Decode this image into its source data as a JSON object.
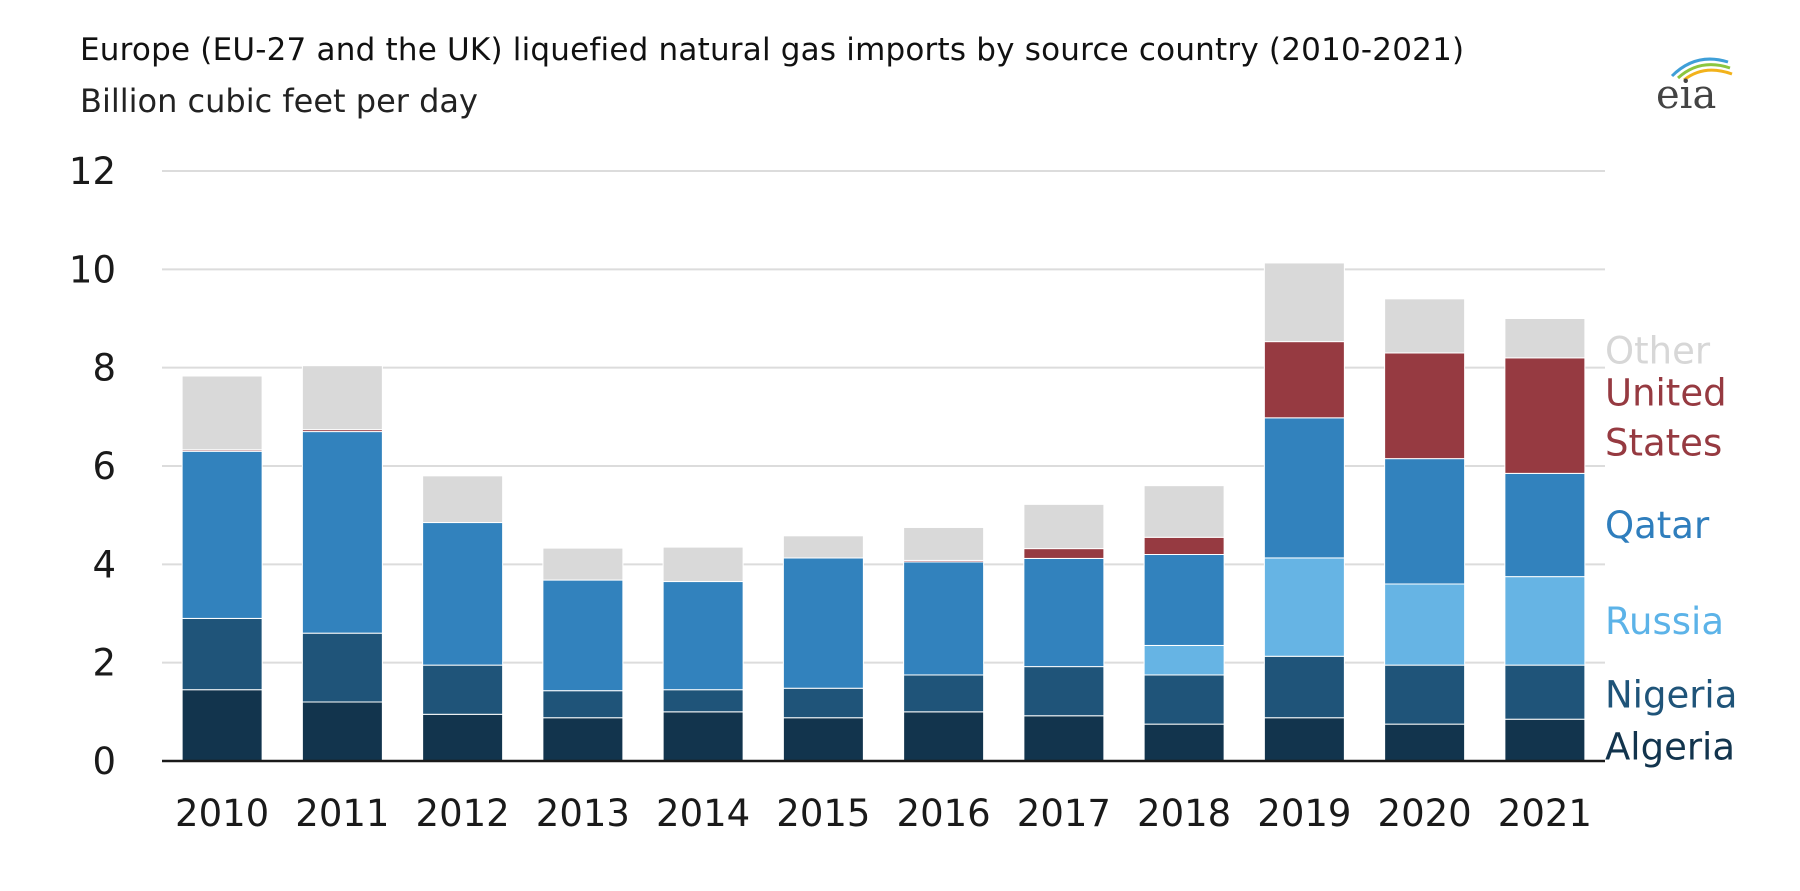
{
  "chart_data": {
    "type": "bar",
    "stacked": true,
    "title": "Europe (EU-27 and the UK) liquefied natural gas imports by source country (2010-2021)",
    "subtitle": "Billion cubic feet per day",
    "logo_text": "eia",
    "categories": [
      "2010",
      "2011",
      "2012",
      "2013",
      "2014",
      "2015",
      "2016",
      "2017",
      "2018",
      "2019",
      "2020",
      "2021"
    ],
    "y_ticks": [
      "0",
      "2",
      "4",
      "6",
      "8",
      "10",
      "12"
    ],
    "ylim": [
      0,
      12
    ],
    "grid": true,
    "legend_placement": "right, inline labels",
    "series": [
      {
        "name": "Algeria",
        "color": "#12344d",
        "label_color": "#12344d",
        "values": [
          1.45,
          1.2,
          0.95,
          0.88,
          1.0,
          0.88,
          1.0,
          0.92,
          0.75,
          0.88,
          0.75,
          0.85
        ]
      },
      {
        "name": "Nigeria",
        "color": "#1f5479",
        "label_color": "#1f5479",
        "values": [
          1.45,
          1.4,
          1.0,
          0.55,
          0.45,
          0.6,
          0.75,
          1.0,
          1.0,
          1.25,
          1.2,
          1.1
        ]
      },
      {
        "name": "Russia",
        "color": "#66b4e4",
        "label_color": "#5cb3e8",
        "values": [
          0,
          0,
          0,
          0,
          0,
          0,
          0,
          0,
          0.6,
          2.0,
          1.65,
          1.8
        ]
      },
      {
        "name": "Qatar",
        "color": "#3282bd",
        "label_color": "#2f7ebd",
        "values": [
          3.4,
          4.1,
          2.9,
          2.25,
          2.2,
          2.65,
          2.3,
          2.2,
          1.85,
          2.85,
          2.55,
          2.1
        ]
      },
      {
        "name": "United States",
        "name_lines": [
          "United",
          "States"
        ],
        "color": "#963a41",
        "label_color": "#963a41",
        "values": [
          0.03,
          0.04,
          0,
          0,
          0,
          0,
          0.03,
          0.2,
          0.35,
          1.55,
          2.15,
          2.35
        ]
      },
      {
        "name": "Other",
        "color": "#d9d9d9",
        "label_color": "#d7d7d7",
        "values": [
          1.5,
          1.3,
          0.95,
          0.65,
          0.7,
          0.45,
          0.67,
          0.9,
          1.05,
          1.6,
          1.1,
          0.8
        ]
      }
    ]
  }
}
